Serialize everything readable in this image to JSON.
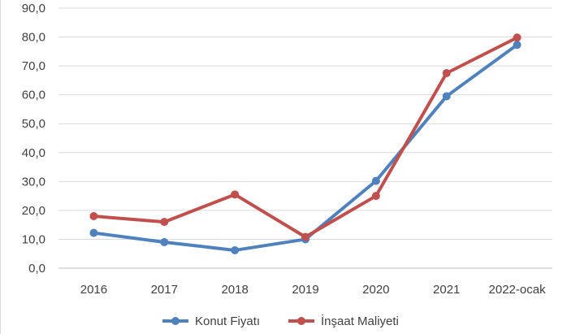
{
  "chart_data": {
    "type": "line",
    "categories": [
      "2016",
      "2017",
      "2018",
      "2019",
      "2020",
      "2021",
      "2022-ocak"
    ],
    "series": [
      {
        "name": "Konut Fiyatı",
        "color": "#4f81bd",
        "values": [
          12.2,
          9.0,
          6.2,
          10.0,
          30.2,
          59.5,
          77.3
        ]
      },
      {
        "name": "İnşaat Maliyeti",
        "color": "#c0504d",
        "values": [
          18.0,
          16.0,
          25.5,
          10.8,
          25.0,
          67.5,
          79.8
        ]
      }
    ],
    "y_ticks": [
      "0,0",
      "10,0",
      "20,0",
      "30,0",
      "40,0",
      "50,0",
      "60,0",
      "70,0",
      "80,0",
      "90,0"
    ],
    "ylim": [
      0,
      90
    ],
    "grid": true,
    "legend_position": "bottom"
  }
}
